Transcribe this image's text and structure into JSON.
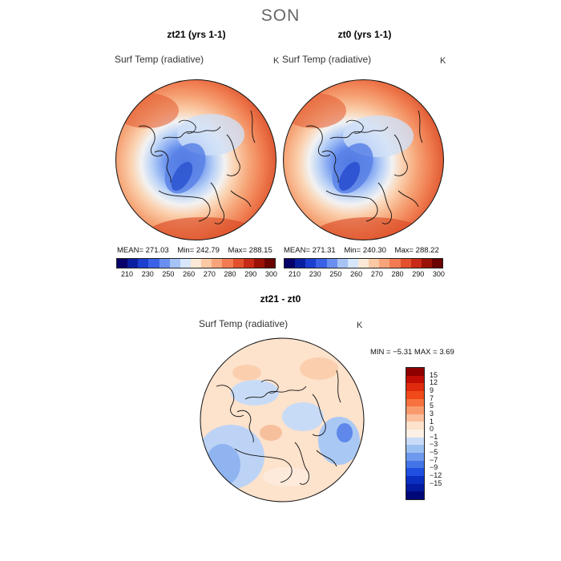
{
  "figure": {
    "season": "SON"
  },
  "panels": [
    {
      "title": "zt21 (yrs 1-1)",
      "variable": "Surf Temp (radiative)",
      "unit": "K",
      "stats": {
        "mean": "MEAN= 271.03",
        "min": "Min= 242.79",
        "max": "Max= 288.15"
      }
    },
    {
      "title": "zt0 (yrs 1-1)",
      "variable": "Surf Temp (radiative)",
      "unit": "K",
      "stats": {
        "mean": "MEAN= 271.31",
        "min": "Min= 240.30",
        "max": "Max= 288.22"
      }
    }
  ],
  "abs_colorbar": {
    "tick_labels": [
      "210",
      "230",
      "250",
      "260",
      "270",
      "280",
      "290",
      "300"
    ],
    "colors": [
      "#08006a",
      "#0a1fa0",
      "#1c3fd0",
      "#3b62e6",
      "#6a8ff0",
      "#a6c3f5",
      "#d7e6fb",
      "#fbe8d6",
      "#fbc9a4",
      "#f8a47a",
      "#f27b52",
      "#e2502e",
      "#c72a16",
      "#9a1206",
      "#6a0402"
    ]
  },
  "diff_panel": {
    "title": "zt21 - zt0",
    "variable": "Surf Temp (radiative)",
    "unit": "K",
    "min_max": "MIN = −5.31 MAX =   3.69"
  },
  "diff_colorbar": {
    "labels_top_to_bottom": [
      "15",
      "12",
      "9",
      "7",
      "5",
      "3",
      "1",
      "0",
      "−1",
      "−3",
      "−5",
      "−7",
      "−9",
      "−12",
      "−15"
    ],
    "colors_top_to_bottom": [
      "#8e0000",
      "#c00e04",
      "#df2a0c",
      "#f04a1a",
      "#f7723e",
      "#f99a6d",
      "#fbbf9c",
      "#fde2cc",
      "#fdf0e4",
      "#c8dbf6",
      "#9cc0f2",
      "#6e99ee",
      "#4375e6",
      "#1f4fe0",
      "#0a2ec0",
      "#041aa0",
      "#000878"
    ]
  }
}
